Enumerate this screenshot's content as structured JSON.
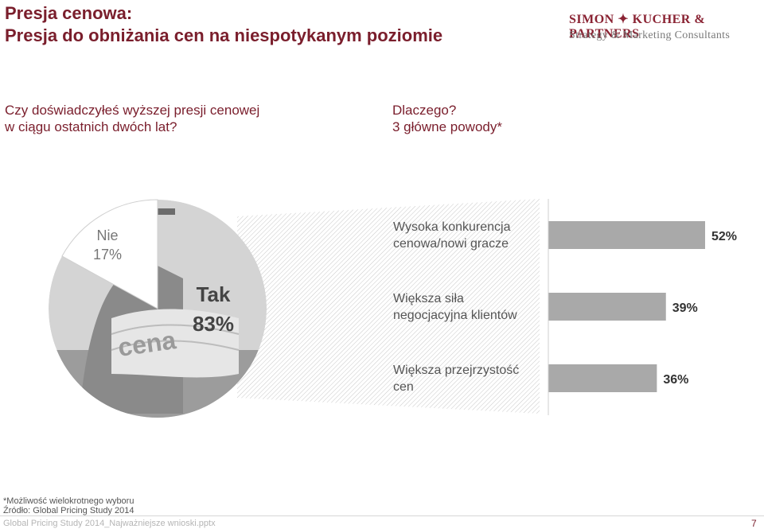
{
  "header": {
    "title_line1": "Presja cenowa:",
    "title_line2": "Presja do obniżania cen na niespotykanym poziomie",
    "logo_line1": "SIMON ✦ KUCHER & PARTNERS",
    "logo_line2": "Strategy & Marketing Consultants"
  },
  "questions": {
    "left_line1": "Czy doświadczyłeś wyższej presji cenowej",
    "left_line2": "w ciągu ostatnich dwóch lat?",
    "right_line1": "Dlaczego?",
    "right_line2": "3 główne powody*"
  },
  "image_text": "cena",
  "colors": {
    "accent": "#7a1e2c",
    "bar": "#a9a9a9",
    "pie_slice": "#ffffff"
  },
  "chart_data": [
    {
      "type": "pie",
      "slices": [
        {
          "label_line1": "Tak",
          "label_line2": "83%",
          "value": 83
        },
        {
          "label_line1": "Nie",
          "label_line2": "17%",
          "value": 17
        }
      ]
    },
    {
      "type": "bar",
      "orientation": "horizontal",
      "categories": [
        [
          "Wysoka konkurencja",
          "cenowa/nowi gracze"
        ],
        [
          "Większa siła",
          "negocjacyjna klientów"
        ],
        [
          "Większa przejrzystość",
          "cen"
        ]
      ],
      "values": [
        52,
        39,
        36
      ],
      "value_labels": [
        "52%",
        "39%",
        "36%"
      ],
      "xlim": [
        0,
        52
      ]
    }
  ],
  "footnotes": {
    "note": "*Możliwość wielokrotnego wyboru",
    "source": "Źródło: Global Pricing Study 2014",
    "file": "Global Pricing Study 2014_Najważniejsze wnioski.pptx",
    "page": "7"
  }
}
